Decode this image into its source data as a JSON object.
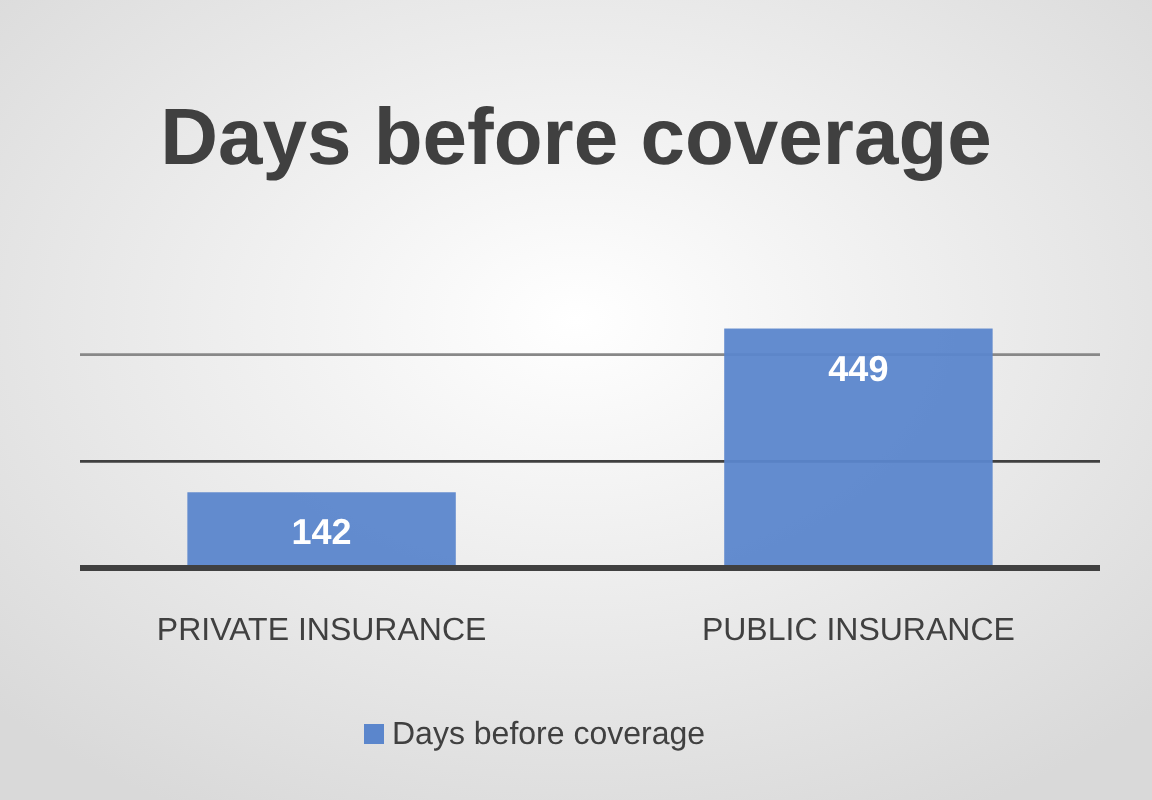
{
  "chart_data": {
    "type": "bar",
    "title": "Days before coverage",
    "categories": [
      "PRIVATE INSURANCE",
      "PUBLIC INSURANCE"
    ],
    "series": [
      {
        "name": "Days before coverage",
        "color": "#5b86cc",
        "values": [
          142,
          449
        ]
      }
    ],
    "ylim": [
      0,
      450
    ],
    "ref_lines": [
      {
        "axis": "y",
        "value": 200,
        "color": "#404040"
      },
      {
        "axis": "y",
        "value": 400,
        "color": "#888888"
      }
    ],
    "data_labels": true,
    "legend": "bottom",
    "tick_labels": "x"
  }
}
